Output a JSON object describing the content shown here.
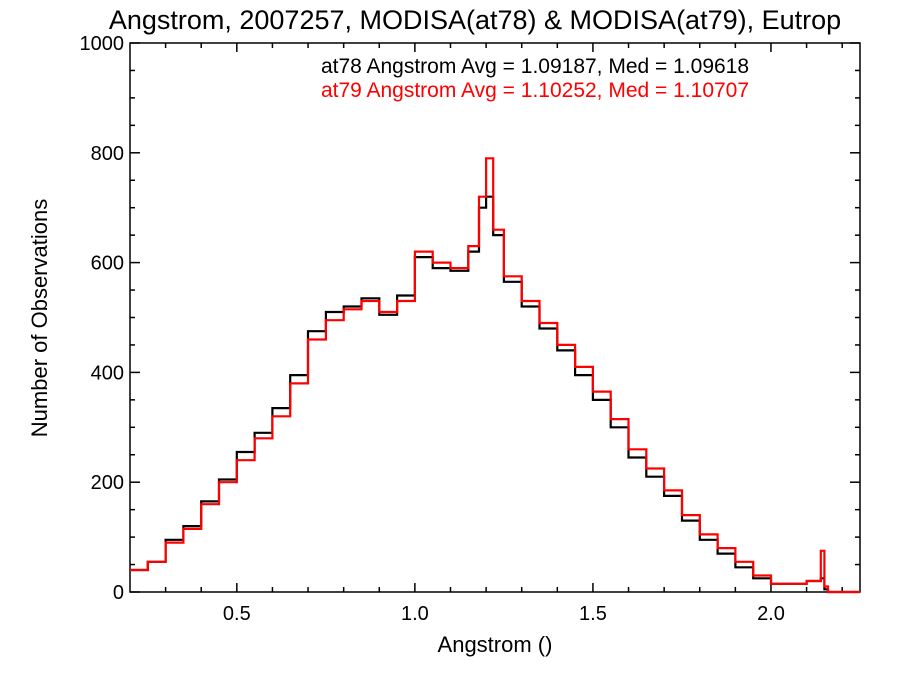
{
  "chart_data": {
    "type": "line",
    "title": "Angstrom, 2007257, MODISA(at78) & MODISA(at79), Eutrop",
    "xlabel": "Angstrom ()",
    "ylabel": "Number of Observations",
    "xlim": [
      0.2,
      2.25
    ],
    "ylim": [
      0,
      1000
    ],
    "x_ticks": [
      "0.5",
      "1.0",
      "1.5",
      "2.0"
    ],
    "y_ticks": [
      "0",
      "200",
      "400",
      "600",
      "800",
      "1000"
    ],
    "annotations": [
      "at78 Angstrom Avg = 1.09187, Med = 1.09618",
      "at79 Angstrom Avg = 1.10252, Med = 1.10707"
    ],
    "x": [
      0.2,
      0.25,
      0.3,
      0.35,
      0.4,
      0.45,
      0.5,
      0.55,
      0.6,
      0.65,
      0.7,
      0.75,
      0.8,
      0.85,
      0.9,
      0.95,
      1.0,
      1.05,
      1.1,
      1.15,
      1.18,
      1.2,
      1.22,
      1.25,
      1.3,
      1.35,
      1.4,
      1.45,
      1.5,
      1.55,
      1.6,
      1.65,
      1.7,
      1.75,
      1.8,
      1.85,
      1.9,
      1.95,
      2.0,
      2.05,
      2.1,
      2.14,
      2.15,
      2.16,
      2.2,
      2.25
    ],
    "series": [
      {
        "name": "at78",
        "color": "#000000",
        "values": [
          40,
          55,
          95,
          120,
          165,
          205,
          255,
          290,
          335,
          395,
          475,
          510,
          520,
          535,
          505,
          540,
          610,
          590,
          585,
          620,
          700,
          720,
          650,
          565,
          520,
          480,
          440,
          395,
          350,
          300,
          245,
          210,
          175,
          130,
          95,
          70,
          45,
          25,
          15,
          15,
          20,
          25,
          5,
          0,
          0,
          0
        ]
      },
      {
        "name": "at79",
        "color": "#ff0000",
        "values": [
          40,
          55,
          90,
          115,
          160,
          200,
          240,
          280,
          320,
          380,
          460,
          495,
          515,
          530,
          510,
          530,
          620,
          600,
          590,
          630,
          720,
          790,
          660,
          575,
          530,
          490,
          450,
          410,
          365,
          315,
          260,
          225,
          185,
          140,
          105,
          80,
          55,
          30,
          15,
          15,
          20,
          75,
          10,
          0,
          0,
          0
        ]
      }
    ]
  }
}
